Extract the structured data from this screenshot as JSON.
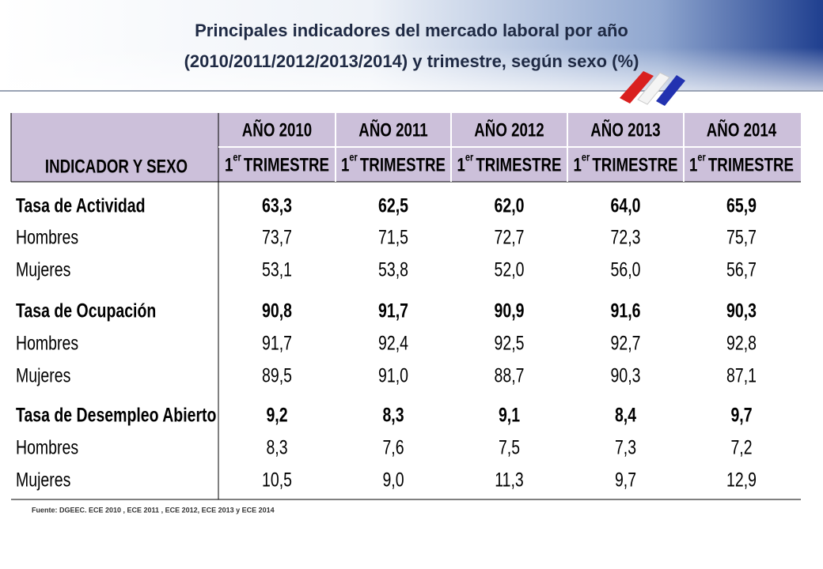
{
  "header": {
    "title": [
      "Principales indicadores del mercado laboral por año",
      "(2010/2011/2012/2013/2014)  y trimestre, según sexo (%)"
    ]
  },
  "table": {
    "corner": "INDICADOR  Y SEXO",
    "columns": [
      {
        "year": "AÑO 2010",
        "quarter": {
          "num": "1",
          "sup": "er",
          "label": "TRIMESTRE"
        }
      },
      {
        "year": "AÑO 2011",
        "quarter": {
          "num": "1",
          "sup": "er",
          "label": "TRIMESTRE"
        }
      },
      {
        "year": "AÑO 2012",
        "quarter": {
          "num": "1",
          "sup": "er",
          "label": "TRIMESTRE"
        }
      },
      {
        "year": "AÑO 2013",
        "quarter": {
          "num": "1",
          "sup": "er",
          "label": "TRIMESTRE"
        }
      },
      {
        "year": "AÑO 2014",
        "quarter": {
          "num": "1",
          "sup": "er",
          "label": "TRIMESTRE"
        }
      }
    ],
    "rows": [
      {
        "label": "Tasa de Actividad",
        "bold": true,
        "cells": [
          "63,3",
          "62,5",
          "62,0",
          "64,0",
          "65,9"
        ]
      },
      {
        "label": "Hombres",
        "bold": false,
        "cells": [
          "73,7",
          "71,5",
          "72,7",
          "72,3",
          "75,7"
        ]
      },
      {
        "label": "Mujeres",
        "bold": false,
        "cells": [
          "53,1",
          "53,8",
          "52,0",
          "56,0",
          "56,7"
        ]
      },
      {
        "label": "Tasa de Ocupación",
        "bold": true,
        "cells": [
          "90,8",
          "91,7",
          "90,9",
          "91,6",
          "90,3"
        ]
      },
      {
        "label": "Hombres",
        "bold": false,
        "cells": [
          "91,7",
          "92,4",
          "92,5",
          "92,7",
          "92,8"
        ]
      },
      {
        "label": "Mujeres",
        "bold": false,
        "cells": [
          "89,5",
          "91,0",
          "88,7",
          "90,3",
          "87,1"
        ]
      },
      {
        "label": "Tasa de Desempleo Abierto",
        "bold": true,
        "cells": [
          "9,2",
          "8,3",
          "9,1",
          "8,4",
          "9,7"
        ]
      },
      {
        "label": "Hombres",
        "bold": false,
        "cells": [
          "8,3",
          "7,6",
          "7,5",
          "7,3",
          "7,2"
        ]
      },
      {
        "label": "Mujeres",
        "bold": false,
        "cells": [
          "10,5",
          "9,0",
          "11,3",
          "9,7",
          "12,9"
        ]
      }
    ]
  },
  "source": "Fuente: DGEEC. ECE 2010 , ECE 2011 , ECE 2012, ECE 2013 y ECE 2014"
}
